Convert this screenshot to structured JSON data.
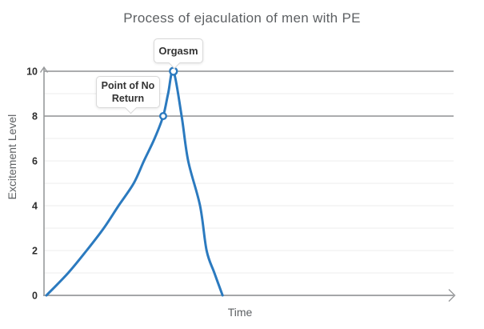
{
  "chart_data": {
    "type": "line",
    "title": "Process of ejaculation of men with PE",
    "xlabel": "Time",
    "ylabel": "Excitement Level",
    "ylim": [
      0,
      10
    ],
    "y_ticks": [
      0,
      2,
      4,
      6,
      8,
      10
    ],
    "x_ticks": [],
    "grid": "horizontal minor lines every 1 unit",
    "reference_levels": [
      8,
      10
    ],
    "legend": "none",
    "colors": {
      "line": "#2b7abf",
      "marker_fill": "#ffffff",
      "axis": "#97999b",
      "reference_line": "#8f9193",
      "gridline": "#ededed",
      "tick_label": "#2e2e2e",
      "label_text": "#5d6063"
    },
    "series": [
      {
        "name": "Excitement",
        "note": "x is percent of visible time axis, y is excitement level",
        "points": [
          [
            0.6,
            0
          ],
          [
            5.9,
            1
          ],
          [
            10.4,
            2
          ],
          [
            14.6,
            3
          ],
          [
            18.2,
            4
          ],
          [
            21.9,
            5
          ],
          [
            24.4,
            6
          ],
          [
            27.0,
            7
          ],
          [
            29.1,
            8
          ],
          [
            30.3,
            9
          ],
          [
            31.6,
            10
          ],
          [
            33.6,
            8
          ],
          [
            35.2,
            6
          ],
          [
            38.1,
            4
          ],
          [
            39.7,
            2
          ],
          [
            41.6,
            1
          ],
          [
            43.6,
            0
          ]
        ]
      }
    ],
    "annotations": [
      {
        "label": "Orgasm",
        "x_pct": 31.6,
        "y": 10
      },
      {
        "label": "Point of No Return",
        "x_pct": 29.1,
        "y": 8
      }
    ]
  }
}
